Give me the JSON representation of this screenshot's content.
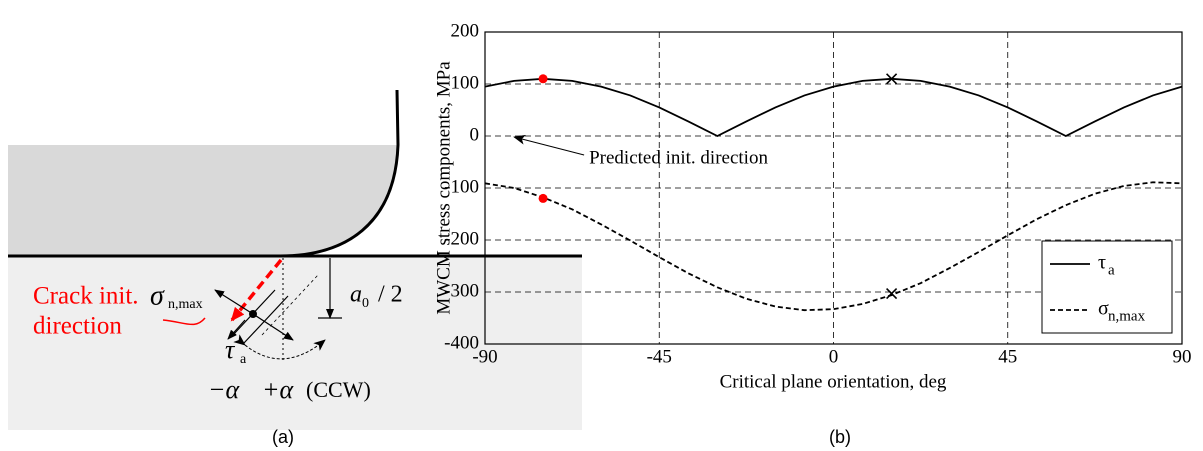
{
  "panel_a": {
    "crack_label": [
      "Crack init.",
      "direction"
    ],
    "sigma": "σ",
    "sigma_sub": "n,max",
    "tau": "τ",
    "tau_sub": "a",
    "a0": "a",
    "a0_sub": "0",
    "a0_rest": "/ 2",
    "minus_alpha": "−α",
    "plus_alpha": "+α",
    "ccw": "(CCW)",
    "caption": "(a)"
  },
  "chart_data": {
    "type": "line",
    "caption": "(b)",
    "xlabel": "Critical plane orientation, deg",
    "ylabel": "MWCM stress components, MPa",
    "xlim": [
      -90,
      90
    ],
    "xticks": [
      -90,
      -45,
      0,
      45,
      90
    ],
    "ylim": [
      -400,
      200
    ],
    "yticks": [
      -400,
      -300,
      -200,
      -100,
      0,
      100,
      200
    ],
    "grid": true,
    "legend": "lower right",
    "x": [
      -90,
      -82.5,
      -75,
      -67.5,
      -60,
      -52.5,
      -45,
      -37.5,
      -30,
      -22.5,
      -15,
      -7.5,
      0,
      7.5,
      15,
      22.5,
      30,
      37.5,
      45,
      52.5,
      60,
      67.5,
      75,
      82.5,
      90
    ],
    "series": [
      {
        "name": "τ",
        "name_sub": "a",
        "color": "#000000",
        "dash": "solid",
        "values": [
          95,
          106,
          110,
          106,
          95,
          78,
          55,
          28,
          0,
          28,
          55,
          78,
          95,
          106,
          110,
          106,
          95,
          78,
          55,
          28,
          0,
          28,
          55,
          78,
          95
        ]
      },
      {
        "name": "σ",
        "name_sub": "n,max",
        "color": "#000000",
        "dash": "dashed",
        "values": [
          -91,
          -100,
          -118,
          -141,
          -170,
          -201,
          -233,
          -264,
          -291,
          -313,
          -328,
          -335,
          -333,
          -323,
          -306,
          -283,
          -254,
          -223,
          -191,
          -160,
          -133,
          -111,
          -96,
          -89,
          -91
        ]
      }
    ],
    "points": [
      {
        "x": -75,
        "y": 110,
        "color": "#ff0000",
        "marker": "circle"
      },
      {
        "x": -75,
        "y": -120,
        "color": "#ff0000",
        "marker": "circle"
      },
      {
        "x": 15,
        "y": 110,
        "color": "#000000",
        "marker": "x"
      },
      {
        "x": 15,
        "y": -303,
        "color": "#000000",
        "marker": "x"
      }
    ],
    "annotation": {
      "text": "Predicted init. direction",
      "xy": [
        -83,
        2
      ]
    }
  }
}
